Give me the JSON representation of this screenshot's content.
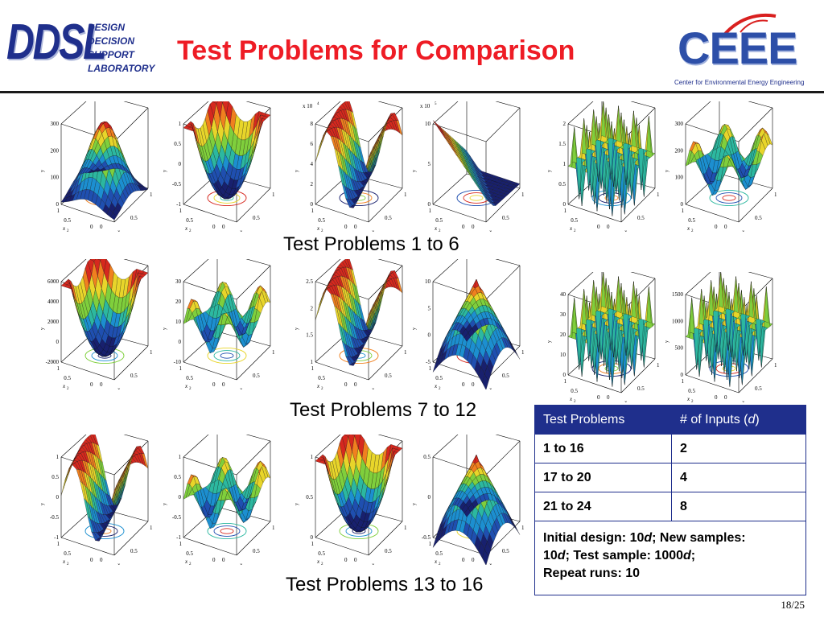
{
  "header": {
    "ddsl_logo": "DDSL",
    "ddsl_lines": [
      "DESIGN",
      "DECISION",
      "SUPPORT",
      "LABORATORY"
    ],
    "title": "Test Problems for Comparison",
    "ceee_logo": "CEEE",
    "ceee_subtitle": "Center for Environmental Energy Engineering"
  },
  "groups": [
    {
      "label": "Test Problems 1 to 6"
    },
    {
      "label": "Test Problems 7 to 12"
    },
    {
      "label": "Test Problems 13 to 16"
    }
  ],
  "plots": [
    {
      "scale": "",
      "z_ticks": [
        "300",
        "200",
        "100",
        "0"
      ],
      "shape": "hill"
    },
    {
      "scale": "",
      "z_ticks": [
        "1",
        "0.5",
        "0",
        "-0.5",
        "-1"
      ],
      "shape": "bowl"
    },
    {
      "scale": "x 10",
      "scale_exp": "4",
      "z_ticks": [
        "8",
        "6",
        "4",
        "2",
        "0"
      ],
      "shape": "ridge"
    },
    {
      "scale": "x 10",
      "scale_exp": "5",
      "z_ticks": [
        "10",
        "5",
        "0"
      ],
      "shape": "corner"
    },
    {
      "scale": "",
      "z_ticks": [
        "2",
        "1.5",
        "1",
        "0.5",
        "0"
      ],
      "shape": "spikes"
    },
    {
      "scale": "",
      "z_ticks": [
        "300",
        "200",
        "100",
        "0"
      ],
      "shape": "bumps"
    },
    {
      "scale": "",
      "z_ticks": [
        "6000",
        "4000",
        "2000",
        "0",
        "-2000"
      ],
      "shape": "bowl"
    },
    {
      "scale": "",
      "z_ticks": [
        "30",
        "20",
        "10",
        "0",
        "-10"
      ],
      "shape": "bumps"
    },
    {
      "scale": "",
      "z_ticks": [
        "2.5",
        "2",
        "1.5",
        "1"
      ],
      "shape": "ridge"
    },
    {
      "scale": "",
      "z_ticks": [
        "10",
        "5",
        "0",
        "-5"
      ],
      "shape": "cone"
    },
    {
      "scale": "",
      "z_ticks": [
        "40",
        "30",
        "20",
        "10",
        "0"
      ],
      "shape": "spikes"
    },
    {
      "scale": "",
      "z_ticks": [
        "1500",
        "1000",
        "500",
        "0"
      ],
      "shape": "spikes"
    },
    {
      "scale": "",
      "z_ticks": [
        "1",
        "0.5",
        "0",
        "-0.5",
        "-1"
      ],
      "shape": "ridge"
    },
    {
      "scale": "",
      "z_ticks": [
        "1",
        "0.5",
        "0",
        "-0.5",
        "-1"
      ],
      "shape": "bumps"
    },
    {
      "scale": "",
      "z_ticks": [
        "1",
        "0.5",
        "0"
      ],
      "shape": "bowl"
    },
    {
      "scale": "",
      "z_ticks": [
        "0.5",
        "0",
        "-0.5"
      ],
      "shape": "cone"
    }
  ],
  "axes": {
    "y_label": "y",
    "x1_label": "x",
    "x1_sub": "1",
    "x2_label": "x",
    "x2_sub": "2",
    "x_ticks": [
      "1",
      "0.5",
      "0"
    ]
  },
  "table": {
    "headers": [
      "Test Problems",
      "# of Inputs ("
    ],
    "header_var": "d",
    "header_close": ")",
    "rows": [
      {
        "problems": "1 to 16",
        "inputs": "2"
      },
      {
        "problems": "17 to 20",
        "inputs": "4"
      },
      {
        "problems": "21 to 24",
        "inputs": "8"
      }
    ],
    "note_line1_a": "Initial design: 10",
    "note_line1_d": "d",
    "note_line1_b": "; New samples:",
    "note_line2_a": "10",
    "note_line2_d": "d",
    "note_line2_b": "; Test sample: 1000",
    "note_line2_d2": "d",
    "note_line2_c": ";",
    "note_line3": "Repeat runs: 10"
  },
  "page_number": "18/25"
}
